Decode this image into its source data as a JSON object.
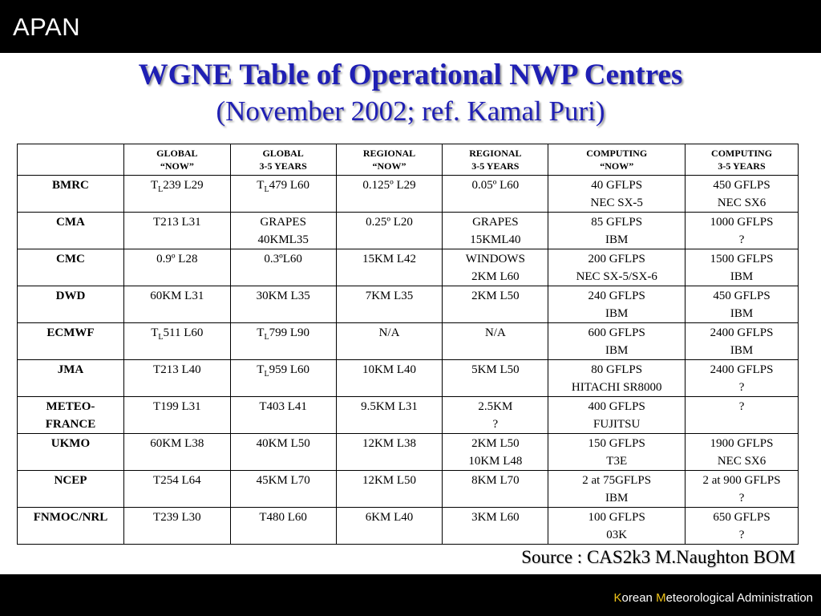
{
  "header": {
    "brand": "APAN"
  },
  "title": {
    "line1": "WGNE Table of Operational NWP Centres",
    "line2": "(November 2002; ref. Kamal Puri)"
  },
  "table": {
    "headers": [
      [
        "",
        ""
      ],
      [
        "GLOBAL",
        "“NOW”"
      ],
      [
        "GLOBAL",
        "3-5 YEARS"
      ],
      [
        "REGIONAL",
        "“NOW”"
      ],
      [
        "REGIONAL",
        "3-5 YEARS"
      ],
      [
        "COMPUTING",
        "“NOW”"
      ],
      [
        "COMPUTING",
        "3-5 YEARS"
      ]
    ],
    "rows": [
      {
        "centre": [
          "BMRC"
        ],
        "cells": [
          [
            "T_L239 L29"
          ],
          [
            "T_L479 L60"
          ],
          [
            "0.125º L29"
          ],
          [
            "0.05º L60"
          ],
          [
            "40 GFLPS",
            "NEC SX-5"
          ],
          [
            "450 GFLPS",
            "NEC SX6"
          ]
        ]
      },
      {
        "centre": [
          "CMA"
        ],
        "cells": [
          [
            "T213 L31"
          ],
          [
            "GRAPES",
            "40KML35"
          ],
          [
            "0.25º L20"
          ],
          [
            "GRAPES",
            "15KML40"
          ],
          [
            "85 GFLPS",
            "IBM"
          ],
          [
            "1000 GFLPS",
            "?"
          ]
        ]
      },
      {
        "centre": [
          "CMC"
        ],
        "cells": [
          [
            "0.9º L28"
          ],
          [
            "0.3ºL60"
          ],
          [
            "15KM  L42"
          ],
          [
            "WINDOWS",
            "2KM  L60"
          ],
          [
            "200 GFLPS",
            "NEC SX-5/SX-6"
          ],
          [
            "1500 GFLPS",
            "IBM"
          ]
        ]
      },
      {
        "centre": [
          "DWD"
        ],
        "cells": [
          [
            "60KM L31"
          ],
          [
            "30KM L35"
          ],
          [
            "7KM  L35"
          ],
          [
            "2KM L50"
          ],
          [
            "240 GFLPS",
            "IBM"
          ],
          [
            "450 GFLPS",
            "IBM"
          ]
        ]
      },
      {
        "centre": [
          "ECMWF"
        ],
        "cells": [
          [
            "T_L511 L60"
          ],
          [
            "T_L799 L90"
          ],
          [
            "N/A"
          ],
          [
            "N/A"
          ],
          [
            "600 GFLPS",
            "IBM"
          ],
          [
            "2400 GFLPS",
            "IBM"
          ]
        ]
      },
      {
        "centre": [
          "JMA"
        ],
        "cells": [
          [
            "T213 L40"
          ],
          [
            "T_L959 L60"
          ],
          [
            "10KM  L40"
          ],
          [
            "5KM L50"
          ],
          [
            "80 GFLPS",
            "HITACHI SR8000"
          ],
          [
            "2400 GFLPS",
            "?"
          ]
        ]
      },
      {
        "centre": [
          "METEO-",
          "FRANCE"
        ],
        "cells": [
          [
            "T199 L31"
          ],
          [
            "T403  L41"
          ],
          [
            "9.5KM  L31"
          ],
          [
            "2.5KM",
            "?"
          ],
          [
            "400 GFLPS",
            "FUJITSU"
          ],
          [
            "?"
          ]
        ]
      },
      {
        "centre": [
          "UKMO"
        ],
        "cells": [
          [
            "60KM L38"
          ],
          [
            "40KM L50"
          ],
          [
            "12KM   L38"
          ],
          [
            "2KM  L50",
            "10KM L48"
          ],
          [
            "150 GFLPS",
            "T3E"
          ],
          [
            "1900 GFLPS",
            "NEC SX6"
          ]
        ]
      },
      {
        "centre": [
          "NCEP"
        ],
        "cells": [
          [
            "T254 L64"
          ],
          [
            "45KM  L70"
          ],
          [
            "12KM   L50"
          ],
          [
            "8KM L70"
          ],
          [
            "2 at 75GFLPS",
            "IBM"
          ],
          [
            "2 at 900 GFLPS",
            "?"
          ]
        ]
      },
      {
        "centre": [
          "FNMOC/NRL"
        ],
        "cells": [
          [
            "T239 L30"
          ],
          [
            "T480  L60"
          ],
          [
            "6KM    L40"
          ],
          [
            "3KM L60"
          ],
          [
            "100 GFLPS",
            "03K"
          ],
          [
            "650 GFLPS",
            "?"
          ]
        ]
      }
    ]
  },
  "source": "Source : CAS2k3 M.Naughton BOM",
  "footer": {
    "k": "K",
    "orean": "orean ",
    "m": "M",
    "rest": "eteorological Administration"
  },
  "colors": {
    "title": "#1f1fb4",
    "bars": "#000000",
    "footer_accent": "#f0c419"
  }
}
